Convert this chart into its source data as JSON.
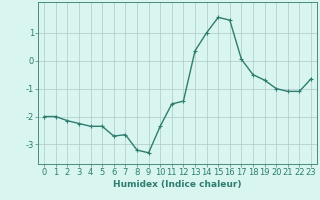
{
  "x": [
    0,
    1,
    2,
    3,
    4,
    5,
    6,
    7,
    8,
    9,
    10,
    11,
    12,
    13,
    14,
    15,
    16,
    17,
    18,
    19,
    20,
    21,
    22,
    23
  ],
  "y": [
    -2.0,
    -2.0,
    -2.15,
    -2.25,
    -2.35,
    -2.35,
    -2.7,
    -2.65,
    -3.2,
    -3.3,
    -2.35,
    -1.55,
    -1.45,
    0.35,
    1.0,
    1.55,
    1.45,
    0.05,
    -0.5,
    -0.7,
    -1.0,
    -1.1,
    -1.1,
    -0.65
  ],
  "line_color": "#2e7d6e",
  "marker": "+",
  "marker_size": 3.5,
  "bg_color": "#d8f5f0",
  "grid_color": "#adc8c8",
  "xlabel": "Humidex (Indice chaleur)",
  "xlabel_fontsize": 6.5,
  "xlabel_color": "#2e7d6e",
  "ylabel_ticks": [
    -3,
    -2,
    -1,
    0,
    1
  ],
  "xlim": [
    -0.5,
    23.5
  ],
  "ylim": [
    -3.7,
    2.1
  ],
  "tick_fontsize": 6,
  "tick_color": "#2e7d6e",
  "line_width": 1.0,
  "spine_color": "#4a8a80"
}
